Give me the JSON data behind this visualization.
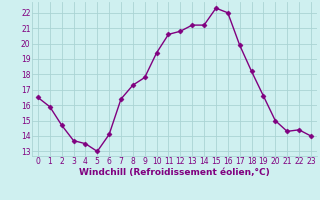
{
  "x": [
    0,
    1,
    2,
    3,
    4,
    5,
    6,
    7,
    8,
    9,
    10,
    11,
    12,
    13,
    14,
    15,
    16,
    17,
    18,
    19,
    20,
    21,
    22,
    23
  ],
  "y": [
    16.5,
    15.9,
    14.7,
    13.7,
    13.5,
    13.0,
    14.1,
    16.4,
    17.3,
    17.8,
    19.4,
    20.6,
    20.8,
    21.2,
    21.2,
    22.3,
    22.0,
    19.9,
    18.2,
    16.6,
    15.0,
    14.3,
    14.4,
    14.0
  ],
  "line_color": "#800080",
  "marker": "D",
  "marker_size": 2.5,
  "bg_color": "#cff0f0",
  "grid_color": "#aad4d4",
  "xlabel": "Windchill (Refroidissement éolien,°C)",
  "xlabel_color": "#800080",
  "tick_color": "#800080",
  "ylim": [
    12.7,
    22.7
  ],
  "yticks": [
    13,
    14,
    15,
    16,
    17,
    18,
    19,
    20,
    21,
    22
  ],
  "xticks": [
    0,
    1,
    2,
    3,
    4,
    5,
    6,
    7,
    8,
    9,
    10,
    11,
    12,
    13,
    14,
    15,
    16,
    17,
    18,
    19,
    20,
    21,
    22,
    23
  ],
  "label_fontsize": 6.5,
  "tick_fontsize": 5.5,
  "line_width": 1.0
}
